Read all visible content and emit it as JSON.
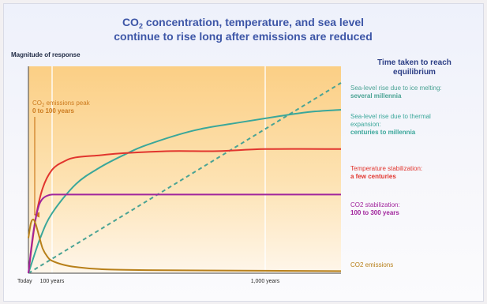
{
  "title": {
    "line1_prefix": "CO",
    "line1_sub": "2",
    "line1_rest": " concentration, temperature, and sea level",
    "line2": "continue to rise long after emissions are reduced"
  },
  "y_axis_label": "Magnitude of response",
  "equilibrium_heading": [
    "Time taken to reach",
    "equilibrium"
  ],
  "peak_annotation": {
    "line1_prefix": "CO",
    "line1_sub": "2",
    "line1_rest": " emissions peak",
    "line2": "0 to 100 years"
  },
  "colors": {
    "background_top": "#fbcf85",
    "background_bottom": "#fef6ea",
    "ice": "#4aa394",
    "thermal": "#3aa79a",
    "temperature": "#e1352e",
    "co2_concentration": "#a1259d",
    "co2_emissions": "#b8801a",
    "peak_label": "#cc7a1e",
    "title": "#3d56a7"
  },
  "chart_data": {
    "type": "line",
    "x_axis": {
      "scale": "time (schematic, 0 to 1,500 years)",
      "tick_labels": [
        "Today",
        "100 years",
        "1,000 years"
      ],
      "tick_values": [
        0,
        100,
        1000
      ],
      "range": [
        0,
        1500
      ]
    },
    "y_axis": {
      "label": "Magnitude of response",
      "range": [
        0,
        1
      ],
      "units": "relative"
    },
    "series": [
      {
        "name": "Sea-level rise due to ice melting",
        "equilibrium": "several millennia",
        "style": "dashed",
        "color": "#4aa394",
        "x": [
          0,
          1500
        ],
        "y": [
          0,
          0.92
        ]
      },
      {
        "name": "Sea-level rise due to thermal expansion",
        "equilibrium": "centuries to millennia",
        "style": "solid",
        "color": "#3aa79a",
        "x": [
          0,
          50,
          100,
          200,
          300,
          400,
          500,
          700,
          900,
          1100,
          1300,
          1500
        ],
        "y": [
          0,
          0.17,
          0.29,
          0.43,
          0.51,
          0.57,
          0.62,
          0.69,
          0.73,
          0.76,
          0.78,
          0.79
        ]
      },
      {
        "name": "Temperature stabilization",
        "equilibrium": "a few centuries",
        "style": "solid",
        "color": "#e1352e",
        "x": [
          0,
          30,
          60,
          100,
          150,
          200,
          300,
          400,
          600,
          800,
          1000,
          1500
        ],
        "y": [
          0,
          0.26,
          0.41,
          0.5,
          0.54,
          0.56,
          0.57,
          0.58,
          0.59,
          0.59,
          0.6,
          0.6
        ]
      },
      {
        "name": "CO2 stabilization",
        "equilibrium": "100 to 300 years",
        "style": "solid",
        "color": "#a1259d",
        "x": [
          0,
          15,
          30,
          45,
          60,
          80,
          100,
          150,
          300,
          1500
        ],
        "y": [
          0,
          0.15,
          0.26,
          0.33,
          0.36,
          0.375,
          0.38,
          0.38,
          0.38,
          0.38
        ]
      },
      {
        "name": "CO2 emissions",
        "equilibrium": "",
        "style": "solid",
        "color": "#b8801a",
        "x": [
          0,
          10,
          20,
          30,
          45,
          60,
          80,
          100,
          150,
          200,
          300,
          500,
          1500
        ],
        "y": [
          0.17,
          0.24,
          0.26,
          0.24,
          0.18,
          0.12,
          0.08,
          0.06,
          0.04,
          0.03,
          0.02,
          0.015,
          0.01
        ]
      }
    ],
    "right_labels": [
      {
        "lines": [
          "Sea-level rise due to ice melting:"
        ],
        "bold": "several millennia",
        "color": "#4aa394"
      },
      {
        "lines": [
          "Sea-level rise due to thermal",
          "expansion:"
        ],
        "bold": "centuries to millennia",
        "color": "#3aa79a"
      },
      {
        "lines": [
          "Temperature stabilization:"
        ],
        "bold": "a few centuries",
        "color": "#e1352e"
      },
      {
        "lines": [
          "CO2 stabilization:"
        ],
        "bold": "100 to 300 years",
        "color": "#a1259d"
      },
      {
        "lines": [
          "CO2 emissions"
        ],
        "bold": "",
        "color": "#b8801a"
      }
    ]
  }
}
